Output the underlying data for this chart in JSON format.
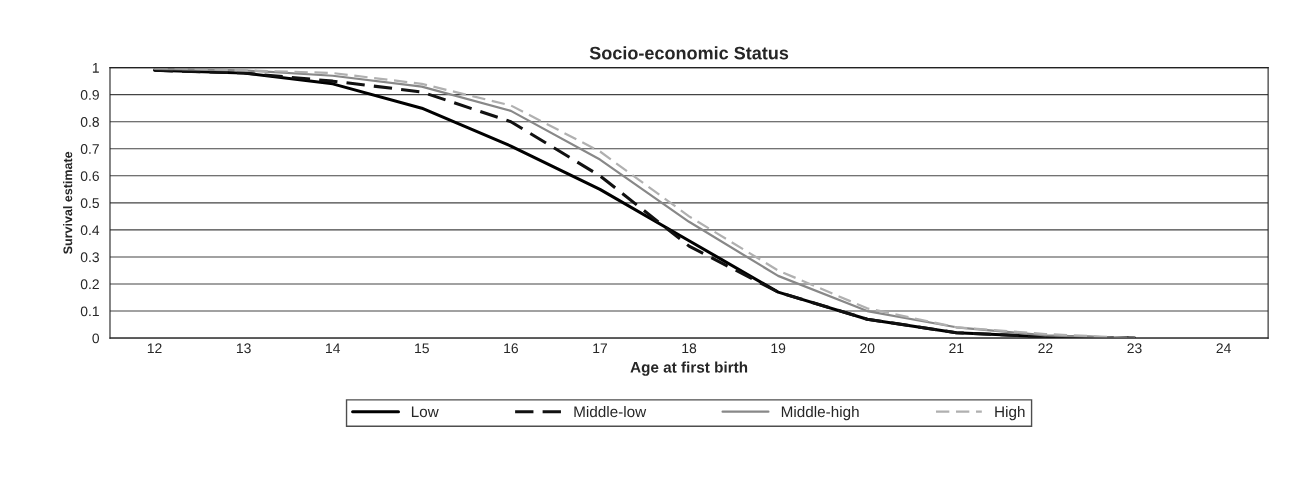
{
  "chart_data": {
    "type": "line",
    "title": "Socio-economic Status",
    "xlabel": "Age at first birth",
    "ylabel": "Survival estimate",
    "categories": [
      "12",
      "13",
      "14",
      "15",
      "16",
      "17",
      "18",
      "19",
      "20",
      "21",
      "22",
      "23",
      "24"
    ],
    "series": [
      {
        "name": "Low",
        "color": "#000000",
        "line_style": "solid",
        "values": [
          0.99,
          0.98,
          0.94,
          0.85,
          0.71,
          0.55,
          0.36,
          0.17,
          0.07,
          0.02,
          0.005,
          0,
          null
        ]
      },
      {
        "name": "Middle-low",
        "color": "#111111",
        "line_style": "dashed",
        "values": [
          0.99,
          0.98,
          0.95,
          0.91,
          0.8,
          0.6,
          0.34,
          0.17,
          0.07,
          0.02,
          0.005,
          0,
          null
        ]
      },
      {
        "name": "Middle-high",
        "color": "#888888",
        "line_style": "solid",
        "values": [
          0.995,
          0.99,
          0.97,
          0.93,
          0.84,
          0.66,
          0.43,
          0.23,
          0.1,
          0.04,
          0.01,
          0,
          null
        ]
      },
      {
        "name": "High",
        "color": "#b0b0b0",
        "line_style": "dashed",
        "values": [
          1,
          0.99,
          0.98,
          0.94,
          0.86,
          0.69,
          0.45,
          0.25,
          0.11,
          0.04,
          0.015,
          0,
          null
        ]
      }
    ],
    "ylim": [
      0,
      1
    ],
    "yticks": [
      0,
      0.1,
      0.2,
      0.3,
      0.4,
      0.5,
      0.6,
      0.7,
      0.8,
      0.9,
      1
    ],
    "grid": "y",
    "legend": "bottom",
    "marker": "none"
  }
}
